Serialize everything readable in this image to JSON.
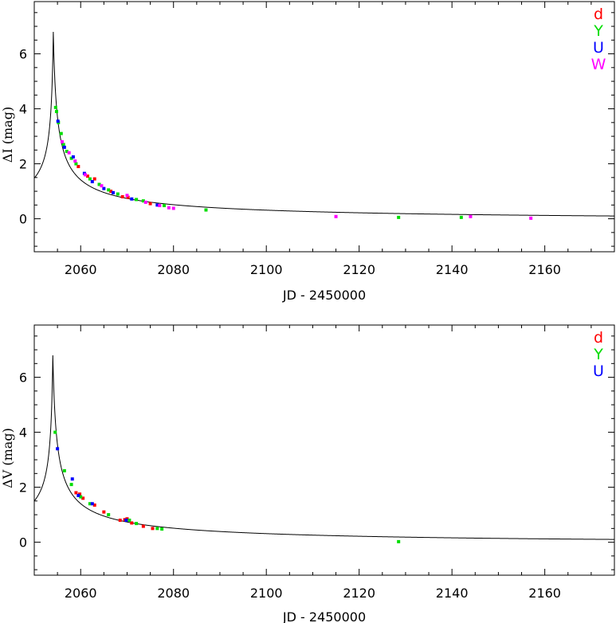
{
  "chart_data": [
    {
      "type": "scatter",
      "xlabel": "JD - 2450000",
      "ylabel": "ΔI (mag)",
      "xlim": [
        2050,
        2175
      ],
      "ylim": [
        -1.2,
        7.9
      ],
      "xticks": [
        2060,
        2080,
        2100,
        2120,
        2140,
        2160
      ],
      "xtick_labels": [
        "2060",
        "2080",
        "2100",
        "2120",
        "2140",
        "2160"
      ],
      "yticks": [
        0,
        2,
        4,
        6
      ],
      "ytick_labels": [
        "0",
        "2",
        "4",
        "6"
      ],
      "legend_position": "top-right",
      "model_curve": {
        "peak_t": 2054.1,
        "peak_mag": 6.8,
        "description": "black line"
      },
      "series": [
        {
          "name": "d",
          "color": "#ff0000",
          "x": [
            2059.5,
            2061.5,
            2063.0,
            2066.5,
            2069.0,
            2070.2,
            2075.0
          ],
          "y": [
            1.9,
            1.55,
            1.45,
            1.0,
            0.8,
            0.78,
            0.55
          ]
        },
        {
          "name": "Y",
          "color": "#00dd00",
          "x": [
            2054.6,
            2054.8,
            2055.2,
            2055.8,
            2056.3,
            2057.0,
            2058.0,
            2059.0,
            2062.0,
            2064.0,
            2066.0,
            2068.0,
            2072.0,
            2073.5,
            2078.0,
            2087.0,
            2128.5,
            2142.0
          ],
          "y": [
            4.05,
            3.9,
            3.5,
            3.1,
            2.7,
            2.45,
            2.2,
            2.0,
            1.45,
            1.25,
            1.05,
            0.9,
            0.7,
            0.65,
            0.48,
            0.32,
            0.05,
            0.05
          ]
        },
        {
          "name": "U",
          "color": "#0000ff",
          "x": [
            2055.1,
            2056.5,
            2058.4,
            2060.8,
            2062.5,
            2065.0,
            2067.0,
            2071.0,
            2076.5
          ],
          "y": [
            3.55,
            2.6,
            2.25,
            1.65,
            1.35,
            1.1,
            0.95,
            0.72,
            0.5
          ]
        },
        {
          "name": "W",
          "color": "#ff00ff",
          "x": [
            2056.0,
            2057.5,
            2058.8,
            2061.0,
            2064.5,
            2070.0,
            2074.0,
            2077.0,
            2079.0,
            2080.0,
            2115.0,
            2144.0,
            2157.0
          ],
          "y": [
            2.8,
            2.4,
            2.1,
            1.6,
            1.2,
            0.85,
            0.6,
            0.48,
            0.4,
            0.38,
            0.08,
            0.08,
            0.02
          ]
        }
      ]
    },
    {
      "type": "scatter",
      "xlabel": "JD - 2450000",
      "ylabel": "ΔV (mag)",
      "xlim": [
        2050,
        2175
      ],
      "ylim": [
        -1.2,
        7.9
      ],
      "xticks": [
        2060,
        2080,
        2100,
        2120,
        2140,
        2160
      ],
      "xtick_labels": [
        "2060",
        "2080",
        "2100",
        "2120",
        "2140",
        "2160"
      ],
      "yticks": [
        0,
        2,
        4,
        6
      ],
      "ytick_labels": [
        "0",
        "2",
        "4",
        "6"
      ],
      "legend_position": "top-right",
      "model_curve": {
        "peak_t": 2054.0,
        "peak_mag": 6.8,
        "description": "black line"
      },
      "series": [
        {
          "name": "d",
          "color": "#ff0000",
          "x": [
            2059.0,
            2059.8,
            2060.5,
            2063.0,
            2065.0,
            2068.5,
            2069.5,
            2070.0,
            2071.0,
            2073.5,
            2075.5
          ],
          "y": [
            1.8,
            1.75,
            1.6,
            1.35,
            1.1,
            0.8,
            0.82,
            0.85,
            0.7,
            0.58,
            0.5
          ]
        },
        {
          "name": "Y",
          "color": "#00dd00",
          "x": [
            2054.5,
            2056.5,
            2058.0,
            2060.0,
            2062.0,
            2066.0,
            2070.5,
            2072.0,
            2076.5,
            2077.5,
            2128.5
          ],
          "y": [
            4.0,
            2.6,
            2.1,
            1.65,
            1.4,
            1.0,
            0.8,
            0.68,
            0.5,
            0.48,
            0.02
          ]
        },
        {
          "name": "U",
          "color": "#0000ff",
          "x": [
            2055.0,
            2058.2,
            2059.5,
            2062.5,
            2069.8
          ],
          "y": [
            3.4,
            2.3,
            1.7,
            1.4,
            0.8
          ]
        }
      ]
    }
  ]
}
